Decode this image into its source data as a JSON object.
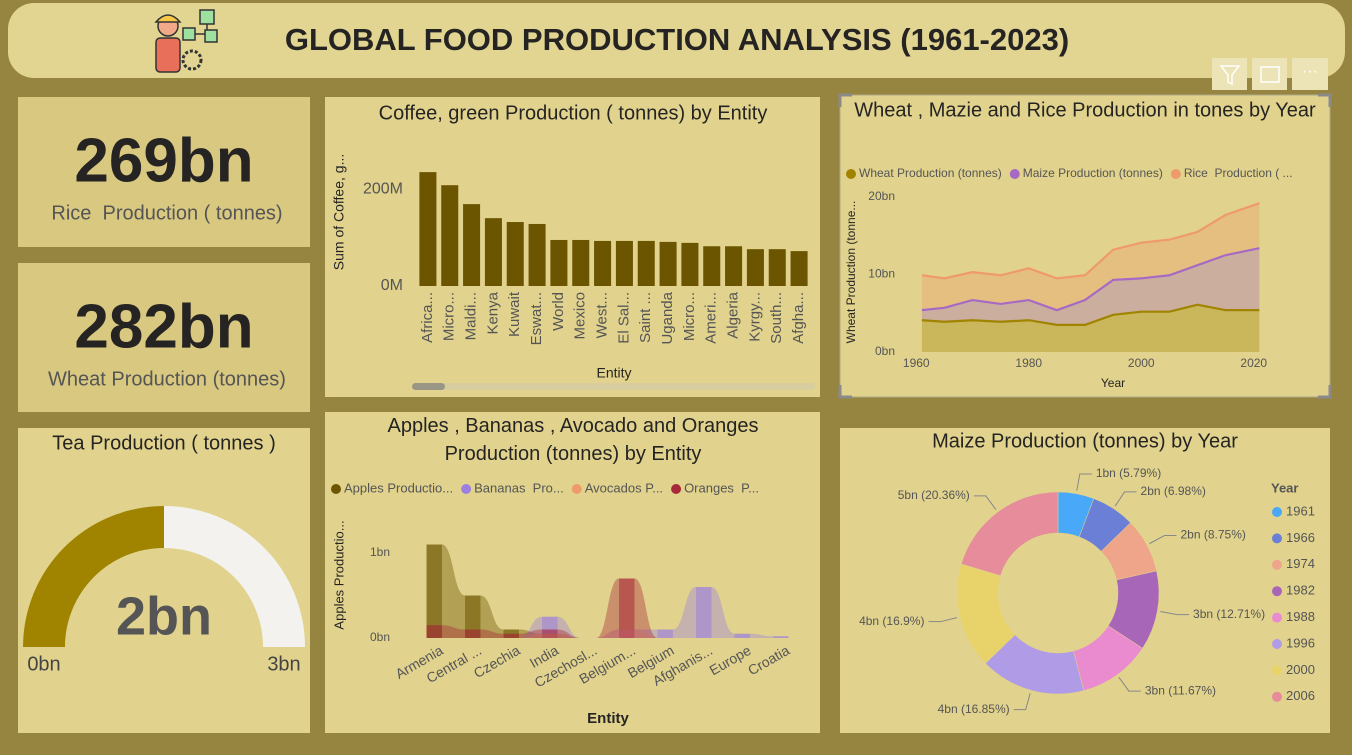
{
  "header": {
    "title": "GLOBAL FOOD PRODUCTION ANALYSIS (1961-2023)"
  },
  "cards": [
    {
      "value": "269bn",
      "label": "Rice  Production ( tonnes)"
    },
    {
      "value": "282bn",
      "label": "Wheat Production (tonnes)"
    }
  ],
  "chart_data": [
    {
      "type": "gauge",
      "title": "Tea Production ( tonnes )",
      "values": [
        1.5
      ],
      "value_labels": [
        "2bn"
      ],
      "ylim": [
        0,
        3
      ],
      "yticks": [
        {
          "value": 0,
          "label": "0bn"
        },
        {
          "value": 3,
          "label": "3bn"
        }
      ],
      "color": "#a08400",
      "track_color": "#f3f2ee"
    },
    {
      "type": "bar",
      "title": "Coffee, green Production ( tonnes) by Entity",
      "x_label": "Entity",
      "y_label": "Sum of Coffee, g...",
      "categories": [
        "Africa...",
        "Micro...",
        "Maldi...",
        "Kenya",
        "Kuwait",
        "Eswat...",
        "World",
        "Mexico",
        "West...",
        "El Sal...",
        "Saint ...",
        "Uganda",
        "Micro...",
        "Ameri...",
        "Algeria",
        "Kyrgy...",
        "South...",
        "Afgha..."
      ],
      "values": [
        235,
        208,
        169,
        140,
        132,
        128,
        95,
        95,
        93,
        93,
        93,
        91,
        89,
        82,
        82,
        76,
        76,
        72
      ],
      "color": "#6b5500",
      "ylim": [
        0,
        260
      ],
      "yticks": [
        {
          "value": 0,
          "label": "0M"
        },
        {
          "value": 200,
          "label": "200M"
        }
      ]
    },
    {
      "type": "area",
      "stacked": true,
      "title": "Wheat , Mazie and Rice Production in tones by Year",
      "x_label": "Year",
      "y_label": "Wheat Production (tonne...",
      "x": [
        1961,
        1965,
        1970,
        1975,
        1980,
        1985,
        1990,
        1995,
        2000,
        2005,
        2010,
        2015,
        2021
      ],
      "series": [
        {
          "name": "Wheat Production (tonnes)",
          "color": "#a08400",
          "values": [
            4.1,
            3.9,
            4.1,
            3.9,
            4.1,
            3.5,
            3.5,
            4.8,
            5.2,
            5.2,
            6.1,
            5.4,
            5.4
          ]
        },
        {
          "name": "Maize Production (tonnes)",
          "color": "#a66ac4",
          "values": [
            1.3,
            1.8,
            2.6,
            2.3,
            2.6,
            1.9,
            3.2,
            4.5,
            4.3,
            4.7,
            5.1,
            7.1,
            8.0
          ]
        },
        {
          "name": "Rice  Production ( ...",
          "color": "#ef9a6a",
          "values": [
            4.5,
            3.8,
            3.6,
            3.7,
            4.1,
            4.1,
            3.2,
            3.9,
            4.6,
            4.6,
            4.3,
            5.2,
            5.8
          ]
        }
      ],
      "xlim": [
        1958,
        2022
      ],
      "xticks": [
        1960,
        1980,
        2000,
        2020
      ],
      "ylim": [
        0,
        21
      ],
      "yticks": [
        {
          "value": 0,
          "label": "0bn"
        },
        {
          "value": 10,
          "label": "10bn"
        },
        {
          "value": 20,
          "label": "20bn"
        }
      ]
    },
    {
      "type": "ribbon",
      "title": "Apples , Bananas , Avocado and Oranges Production (tonnes) by Entity",
      "x_label": "Entity",
      "y_label": "Apples Productio...",
      "categories": [
        "Armenia",
        "Central ...",
        "Czechia",
        "India",
        "Czechosl...",
        "Belgium...",
        "Belgium",
        "Afghanis...",
        "Europe",
        "Croatia"
      ],
      "series": [
        {
          "name": "Apples Productio...",
          "color": "#6b5500",
          "values": [
            1.1,
            0.5,
            0.1,
            0.05,
            0,
            0,
            0,
            0,
            0,
            0
          ]
        },
        {
          "name": "Bananas  Pro...",
          "color": "#9b80e0",
          "values": [
            0,
            0,
            0,
            0.25,
            0,
            0.1,
            0.1,
            0.6,
            0.05,
            0.02
          ]
        },
        {
          "name": "Avocados P...",
          "color": "#ef9a6a",
          "values": [
            0,
            0,
            0,
            0.05,
            0,
            0.1,
            0,
            0,
            0,
            0
          ]
        },
        {
          "name": "Oranges  P...",
          "color": "#a82a3a",
          "values": [
            0.15,
            0.1,
            0.05,
            0.1,
            0,
            0.7,
            0,
            0,
            0,
            0
          ]
        }
      ],
      "ylim": [
        0,
        1.3
      ],
      "yticks": [
        {
          "value": 0,
          "label": "0bn"
        },
        {
          "value": 1,
          "label": "1bn"
        }
      ]
    },
    {
      "type": "donut",
      "title": "Maize Production (tonnes) by Year",
      "legend_title": "Year",
      "categories": [
        "1961",
        "1966",
        "1974",
        "1982",
        "1988",
        "1996",
        "2000",
        "2006"
      ],
      "values": [
        1.42,
        1.72,
        2.15,
        3.13,
        2.87,
        4.15,
        4.16,
        5.01
      ],
      "value_labels": [
        "1bn (5.79%)",
        "2bn (6.98%)",
        "2bn (8.75%)",
        "3bn (12.71%)",
        "3bn (11.67%)",
        "4bn (16.85%)",
        "4bn (16.9%)",
        "5bn (20.36%)"
      ],
      "colors": [
        "#4aa8f8",
        "#6b7fd7",
        "#eea58a",
        "#a866b8",
        "#ea8bd0",
        "#b09be6",
        "#e8d36a",
        "#e68c9a"
      ]
    }
  ]
}
